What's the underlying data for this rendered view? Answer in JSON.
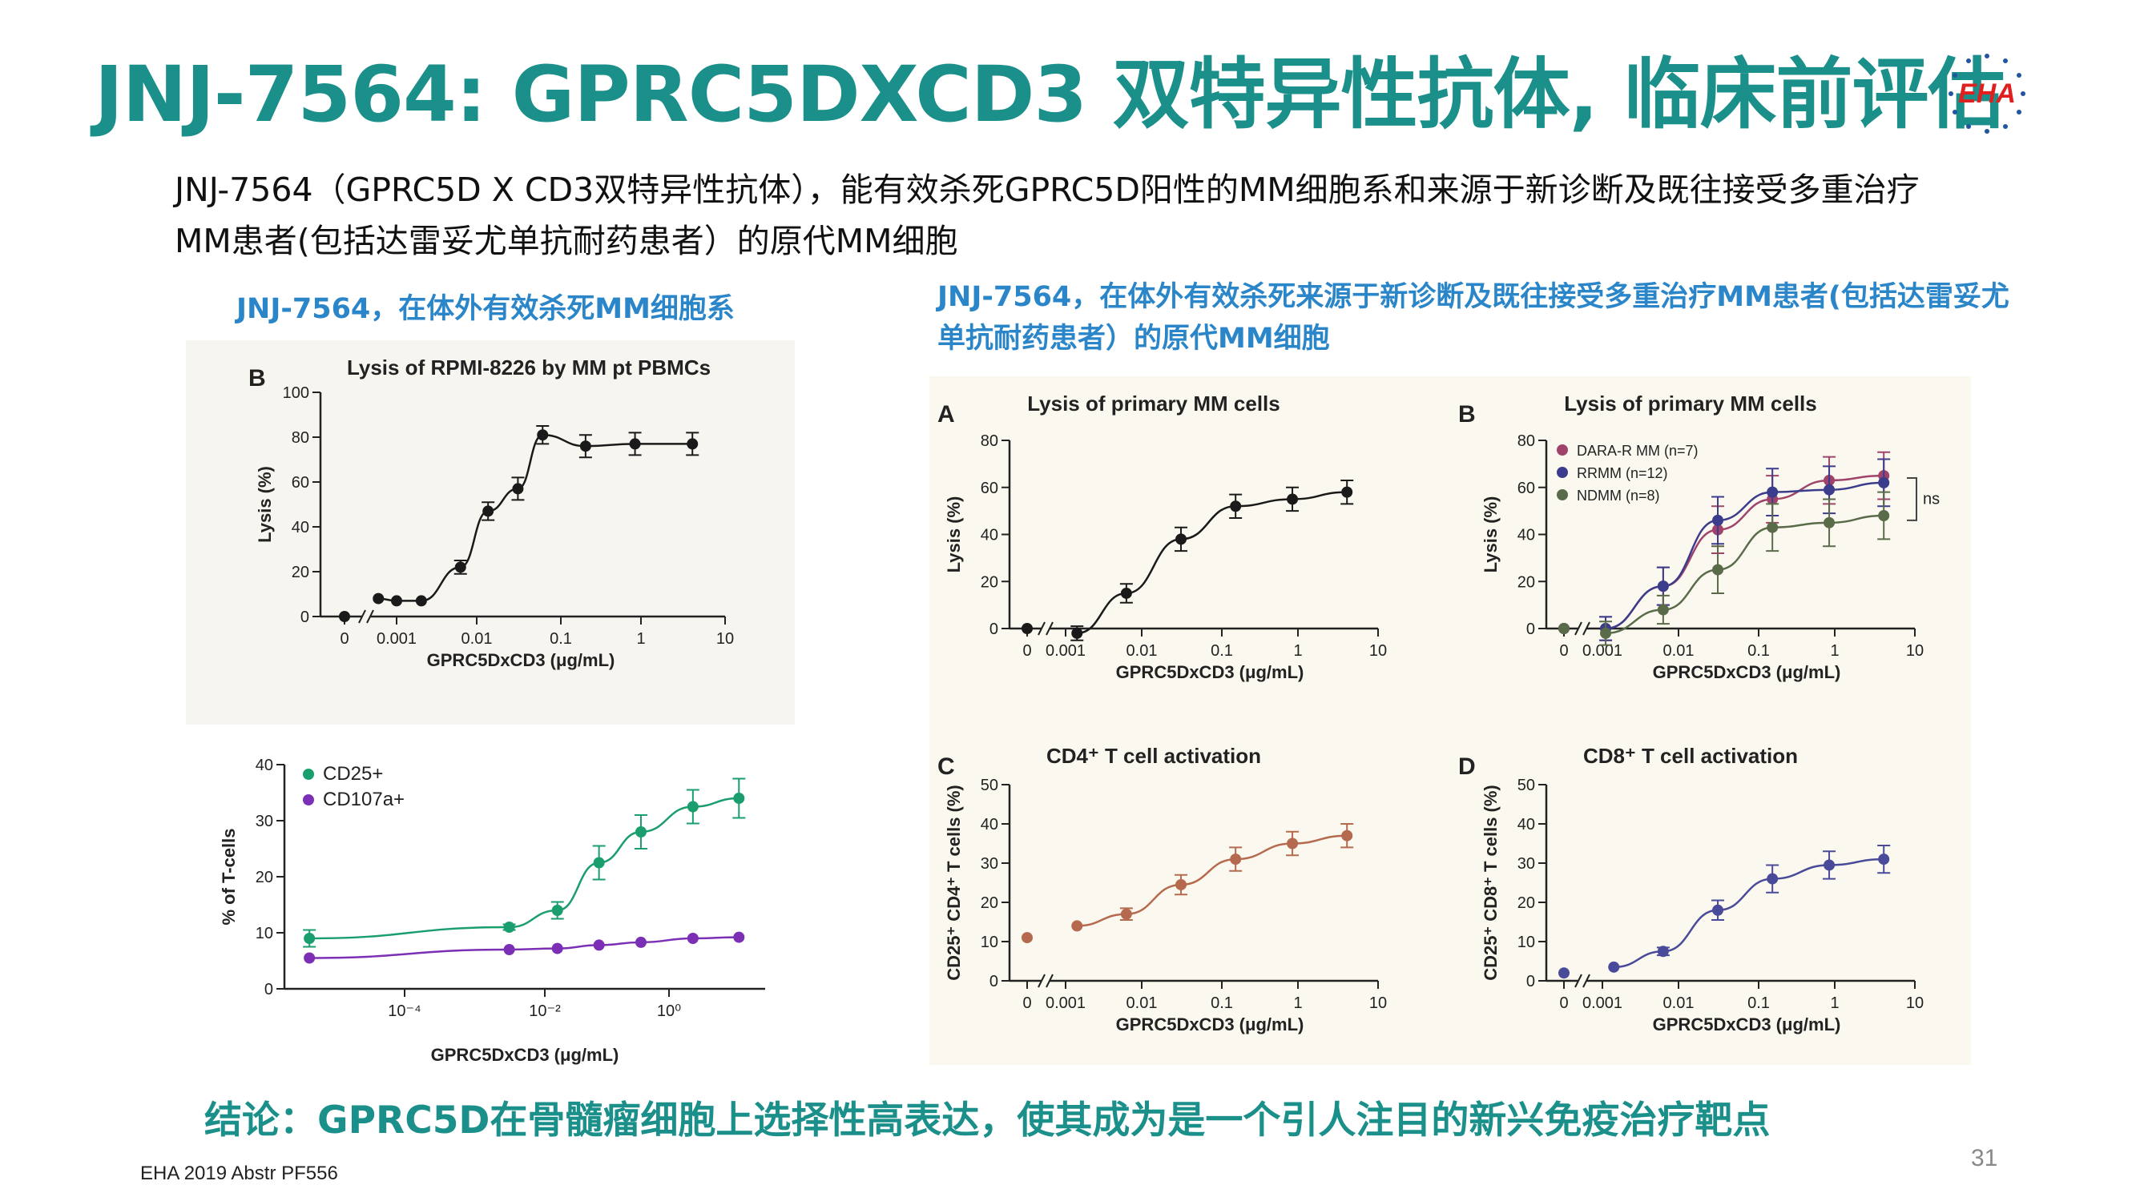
{
  "title": "JNJ-7564: GPRC5DXCD3 双特异性抗体, 临床前评估",
  "logo_text": "EHA",
  "intro": "JNJ-7564（GPRC5D X CD3双特异性抗体），能有效杀死GPRC5D阳性的MM细胞系和来源于新诊断及既往接受多重治疗MM患者(包括达雷妥尤单抗耐药患者）的原代MM细胞",
  "subtitle_left": "JNJ-7564，在体外有效杀死MM细胞系",
  "subtitle_right": "JNJ-7564，在体外有效杀死来源于新诊断及既往接受多重治疗MM患者(包括达雷妥尤单抗耐药患者）的原代MM细胞",
  "conclusion": "结论：GPRC5D在骨髓瘤细胞上选择性高表达，使其成为是一个引人注目的新兴免疫治疗靶点",
  "footer": "EHA 2019 Abstr PF556",
  "page_number": "31",
  "colors": {
    "title": "#1b8f8a",
    "subtitle": "#2a86c8",
    "conclusion": "#1b8f8a",
    "black_series": "#1a1a1a",
    "cd25": "#1a9e6e",
    "cd107a": "#7b2fb5",
    "dara": "#a0436a",
    "rrmm": "#3c3c8c",
    "ndmm": "#5a6b4a",
    "cd4": "#b56a4f",
    "cd8": "#4a4a9a"
  },
  "chart_data": [
    {
      "id": "left-B",
      "type": "line",
      "panel_letter": "B",
      "title": "Lysis of RPMI-8226 by MM pt PBMCs",
      "xlabel": "GPRC5DxCD3 (μg/mL)",
      "ylabel": "Lysis (%)",
      "x_scale": "log",
      "x_ticks": [
        "0",
        "0.001",
        "0.01",
        "0.1",
        "1",
        "10"
      ],
      "y_ticks": [
        "0",
        "20",
        "40",
        "60",
        "80",
        "100"
      ],
      "ylim": [
        0,
        100
      ],
      "series": [
        {
          "color_key": "black_series",
          "x": [
            0,
            0.0006,
            0.001,
            0.002,
            0.006,
            0.013,
            0.03,
            0.06,
            0.2,
            0.8,
            4
          ],
          "y": [
            0,
            8,
            7,
            7,
            22,
            47,
            57,
            81,
            76,
            77,
            77
          ],
          "err": [
            0,
            0,
            0,
            0,
            3,
            4,
            5,
            4,
            5,
            5,
            5
          ]
        }
      ]
    },
    {
      "id": "left-tcell",
      "type": "line",
      "panel_letter": "",
      "title": "",
      "xlabel": "GPRC5DxCD3 (μg/mL)",
      "ylabel": "% of T-cells",
      "x_scale": "log",
      "x_ticks": [
        "10⁻⁴",
        "10⁻²",
        "10⁰"
      ],
      "y_ticks": [
        "0",
        "10",
        "20",
        "30",
        "40"
      ],
      "ylim": [
        0,
        40
      ],
      "legend": [
        "CD25+",
        "CD107a+"
      ],
      "series": [
        {
          "name": "CD25+",
          "color_key": "cd25",
          "x": [
            1.2e-06,
            0.0013,
            0.007,
            0.03,
            0.13,
            0.8,
            4
          ],
          "y": [
            9,
            11,
            14,
            22.5,
            28,
            32.5,
            34
          ],
          "err": [
            1.5,
            0.5,
            1.5,
            3,
            3,
            3,
            3.5
          ]
        },
        {
          "name": "CD107a+",
          "color_key": "cd107a",
          "x": [
            1.2e-06,
            0.0013,
            0.007,
            0.03,
            0.13,
            0.8,
            4
          ],
          "y": [
            5.5,
            7,
            7.2,
            7.8,
            8.3,
            9,
            9.2
          ],
          "err": [
            0,
            0,
            0,
            0,
            0,
            0,
            0
          ]
        }
      ]
    },
    {
      "id": "right-A",
      "type": "line",
      "panel_letter": "A",
      "title": "Lysis of primary MM cells",
      "xlabel": "GPRC5DxCD3 (μg/mL)",
      "ylabel": "Lysis (%)",
      "x_scale": "log",
      "x_ticks": [
        "0",
        "0.001",
        "0.01",
        "0.1",
        "1",
        "10"
      ],
      "y_ticks": [
        "0",
        "20",
        "40",
        "60",
        "80"
      ],
      "ylim": [
        0,
        80
      ],
      "series": [
        {
          "color_key": "black_series",
          "x": [
            0,
            0.0014,
            0.006,
            0.03,
            0.15,
            0.8,
            4
          ],
          "y": [
            0,
            -2,
            15,
            38,
            52,
            55,
            58
          ],
          "err": [
            0,
            3,
            4,
            5,
            5,
            5,
            5
          ]
        }
      ]
    },
    {
      "id": "right-B",
      "type": "line",
      "panel_letter": "B",
      "title": "Lysis of primary MM cells",
      "xlabel": "GPRC5DxCD3 (μg/mL)",
      "ylabel": "Lysis (%)",
      "x_scale": "log",
      "x_ticks": [
        "0",
        "0.001",
        "0.01",
        "0.1",
        "1",
        "10"
      ],
      "y_ticks": [
        "0",
        "20",
        "40",
        "60",
        "80"
      ],
      "ylim": [
        0,
        80
      ],
      "legend": [
        "DARA-R MM (n=7)",
        "RRMM (n=12)",
        "NDMM (n=8)"
      ],
      "annotation": "ns",
      "series": [
        {
          "name": "DARA-R MM (n=7)",
          "color_key": "dara",
          "x": [
            0,
            0.0011,
            0.006,
            0.03,
            0.15,
            0.8,
            4
          ],
          "y": [
            0,
            0,
            18,
            42,
            55,
            63,
            65
          ],
          "err": [
            0,
            5,
            8,
            10,
            10,
            10,
            10
          ]
        },
        {
          "name": "RRMM (n=12)",
          "color_key": "rrmm",
          "x": [
            0,
            0.0011,
            0.006,
            0.03,
            0.15,
            0.8,
            4
          ],
          "y": [
            0,
            0,
            18,
            46,
            58,
            59,
            62
          ],
          "err": [
            0,
            5,
            8,
            10,
            10,
            10,
            10
          ]
        },
        {
          "name": "NDMM (n=8)",
          "color_key": "ndmm",
          "x": [
            0,
            0.0011,
            0.006,
            0.03,
            0.15,
            0.8,
            4
          ],
          "y": [
            0,
            -2,
            8,
            25,
            43,
            45,
            48
          ],
          "err": [
            0,
            5,
            6,
            10,
            10,
            10,
            10
          ]
        }
      ]
    },
    {
      "id": "right-C",
      "type": "line",
      "panel_letter": "C",
      "title": "CD4⁺ T cell activation",
      "xlabel": "GPRC5DxCD3 (μg/mL)",
      "ylabel": "CD25⁺ CD4⁺ T cells (%)",
      "x_scale": "log",
      "x_ticks": [
        "0",
        "0.001",
        "0.01",
        "0.1",
        "1",
        "10"
      ],
      "y_ticks": [
        "0",
        "10",
        "20",
        "30",
        "40",
        "50"
      ],
      "ylim": [
        0,
        50
      ],
      "series": [
        {
          "color_key": "cd4",
          "x": [
            0,
            0.0014,
            0.006,
            0.03,
            0.15,
            0.8,
            4
          ],
          "y": [
            11,
            14,
            17,
            24.5,
            31,
            35,
            37
          ],
          "err": [
            0,
            0,
            1.5,
            2.5,
            3,
            3,
            3
          ]
        }
      ]
    },
    {
      "id": "right-D",
      "type": "line",
      "panel_letter": "D",
      "title": "CD8⁺ T cell activation",
      "xlabel": "GPRC5DxCD3 (μg/mL)",
      "ylabel": "CD25⁺ CD8⁺ T cells (%)",
      "x_scale": "log",
      "x_ticks": [
        "0",
        "0.001",
        "0.01",
        "0.1",
        "1",
        "10"
      ],
      "y_ticks": [
        "0",
        "10",
        "20",
        "30",
        "40",
        "50"
      ],
      "ylim": [
        0,
        50
      ],
      "series": [
        {
          "color_key": "cd8",
          "x": [
            0,
            0.0014,
            0.006,
            0.03,
            0.15,
            0.8,
            4
          ],
          "y": [
            2,
            3.5,
            7.5,
            18,
            26,
            29.5,
            31
          ],
          "err": [
            0,
            0,
            1,
            2.5,
            3.5,
            3.5,
            3.5
          ]
        }
      ]
    }
  ]
}
